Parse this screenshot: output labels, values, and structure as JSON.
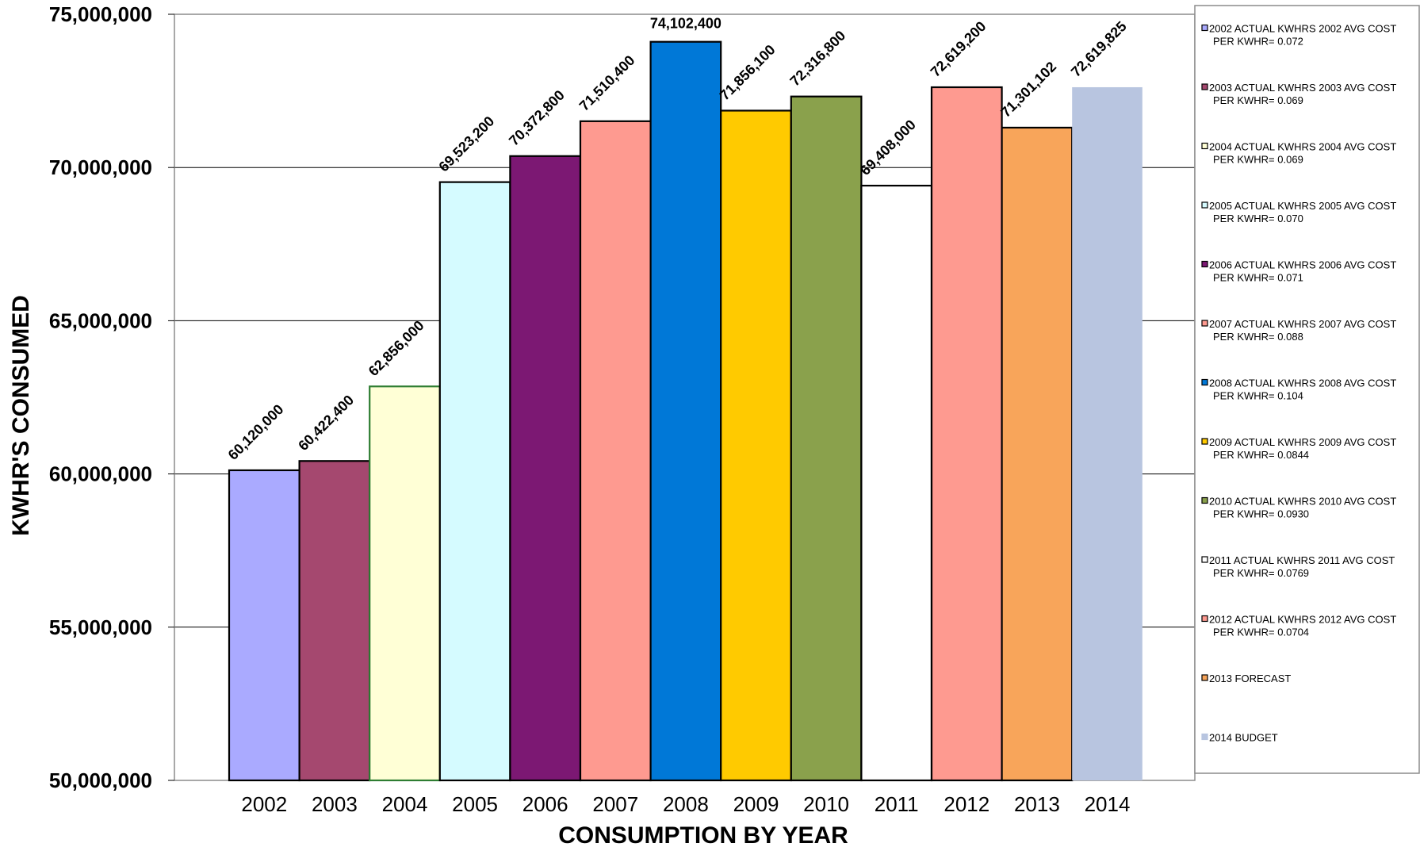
{
  "chart_data": {
    "type": "bar",
    "xlabel": "CONSUMPTION BY YEAR",
    "ylabel": "KWHR'S CONSUMED",
    "ylim": [
      50000000,
      75000000
    ],
    "yticks": [
      50000000,
      55000000,
      60000000,
      65000000,
      70000000,
      75000000
    ],
    "ytick_labels": [
      "50,000,000",
      "55,000,000",
      "60,000,000",
      "65,000,000",
      "70,000,000",
      "75,000,000"
    ],
    "grid": true,
    "legend_position": "right",
    "bars": [
      {
        "category": "2002",
        "value": 60120000,
        "label": "60,120,000",
        "legend": [
          "2002 ACTUAL KWHRS 2002 AVG COST",
          "PER KWHR= 0.072"
        ],
        "fill": "#aaaaff",
        "stroke": "#000000"
      },
      {
        "category": "2003",
        "value": 60422400,
        "label": "60,422,400",
        "legend": [
          "2003 ACTUAL KWHRS 2003 AVG COST",
          "PER KWHR= 0.069"
        ],
        "fill": "#a5486f",
        "stroke": "#000000"
      },
      {
        "category": "2004",
        "value": 62856000,
        "label": "62,856,000",
        "legend": [
          "2004 ACTUAL KWHRS 2004 AVG COST",
          "PER KWHR= 0.069"
        ],
        "fill": "#ffffd6",
        "stroke": "#2e7d32"
      },
      {
        "category": "2005",
        "value": 69523200,
        "label": "69,523,200",
        "legend": [
          "2005 ACTUAL KWHRS 2005 AVG COST",
          "PER KWHR= 0.070"
        ],
        "fill": "#d5fbff",
        "stroke": "#000000"
      },
      {
        "category": "2006",
        "value": 70372800,
        "label": "70,372,800",
        "legend": [
          "2006 ACTUAL KWHRS 2006 AVG COST",
          "PER KWHR= 0.071"
        ],
        "fill": "#7c1873",
        "stroke": "#000000"
      },
      {
        "category": "2007",
        "value": 71510400,
        "label": "71,510,400",
        "legend": [
          "2007 ACTUAL KWHRS 2007 AVG COST",
          "PER KWHR= 0.088"
        ],
        "fill": "#fe9a90",
        "stroke": "#000000"
      },
      {
        "category": "2008",
        "value": 74102400,
        "label": "74,102,400",
        "legend": [
          "2008 ACTUAL KWHRS 2008 AVG COST",
          "PER KWHR= 0.104"
        ],
        "fill": "#0078d7",
        "stroke": "#000000"
      },
      {
        "category": "2009",
        "value": 71856100,
        "label": "71,856,100",
        "legend": [
          "2009 ACTUAL KWHRS 2009 AVG COST",
          "PER KWHR= 0.0844"
        ],
        "fill": "#ffca00",
        "stroke": "#000000"
      },
      {
        "category": "2010",
        "value": 72316800,
        "label": "72,316,800",
        "legend": [
          "2010 ACTUAL KWHRS 2010 AVG COST",
          "PER KWHR= 0.0930"
        ],
        "fill": "#8aa14c",
        "stroke": "#000000"
      },
      {
        "category": "2011",
        "value": 69408000,
        "label": "69,408,000",
        "legend": [
          "2011 ACTUAL KWHRS 2011 AVG COST",
          "PER KWHR= 0.0769"
        ],
        "fill": "#ffffff",
        "stroke": "#000000"
      },
      {
        "category": "2012",
        "value": 72619200,
        "label": "72,619,200",
        "legend": [
          "2012 ACTUAL KWHRS 2012 AVG COST",
          "PER KWHR= 0.0704"
        ],
        "fill": "#fe9a90",
        "stroke": "#000000"
      },
      {
        "category": "2013",
        "value": 71301102,
        "label": "71,301,102",
        "legend": [
          "2013 FORECAST"
        ],
        "fill": "#f8a55a",
        "stroke": "#000000"
      },
      {
        "category": "2014",
        "value": 72619825,
        "label": "72,619,825",
        "legend": [
          "2014 BUDGET"
        ],
        "fill": "#b8c5e0",
        "stroke": "none"
      }
    ]
  }
}
